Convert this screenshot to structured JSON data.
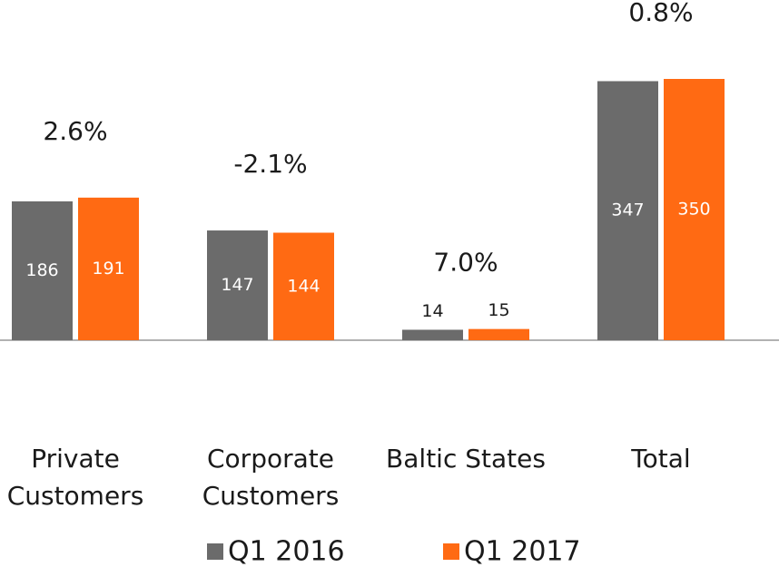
{
  "chart_data": {
    "type": "bar",
    "categories": [
      "Private Customers",
      "Corporate Customers",
      "Baltic States",
      "Total"
    ],
    "series": [
      {
        "name": "Q1 2016",
        "color": "#6b6b6b",
        "values": [
          186,
          147,
          14,
          347
        ]
      },
      {
        "name": "Q1 2017",
        "color": "#ff6a13",
        "values": [
          191,
          144,
          15,
          350
        ]
      }
    ],
    "annotations": [
      "2.6%",
      "-2.1%",
      "7.0%",
      "0.8%"
    ],
    "ylim": [
      0,
      350
    ]
  }
}
